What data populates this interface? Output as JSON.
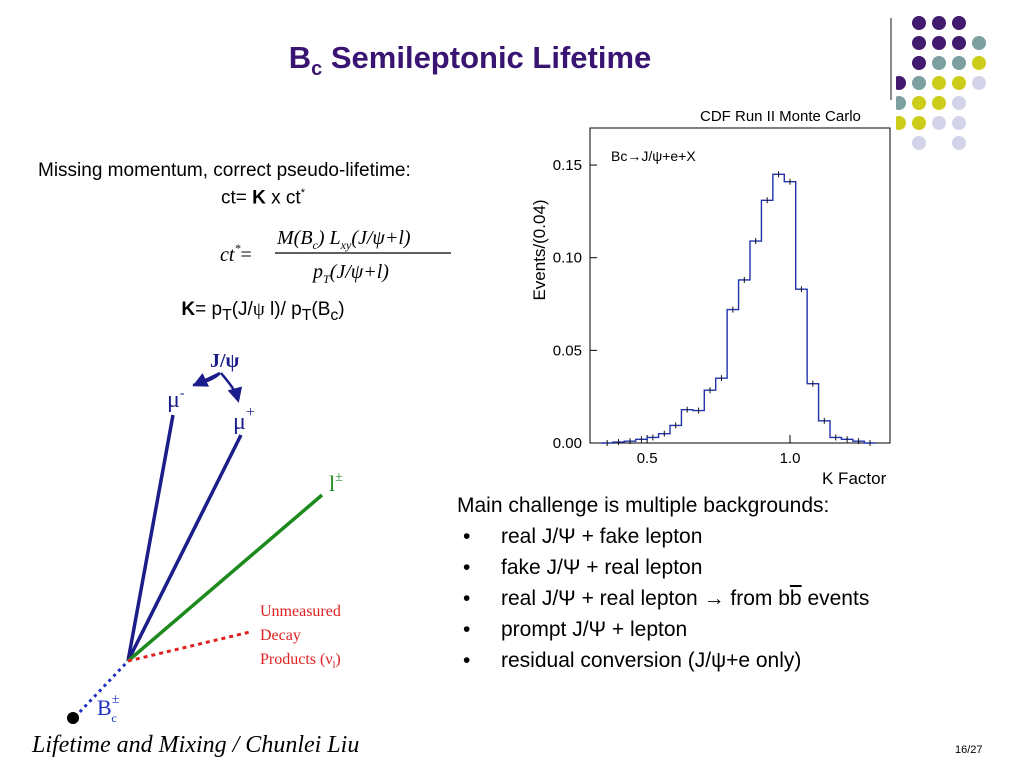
{
  "slide": {
    "title_main": "B",
    "title_sub": "c",
    "title_rest": " Semileptonic Lifetime",
    "page_number": "16/27",
    "footer_text": "Lifetime and Mixing / Chunlei Liu"
  },
  "left_text": {
    "missing_momentum": "Missing momentum, correct pseudo-lifetime:",
    "ct_prefix": "ct=",
    "ct_k": "K",
    "ct_x": " x  ct",
    "ct_star": "*",
    "k_label": "K",
    "k_eq": "= p",
    "k_sub_t1": "T",
    "k_mid": "(J/",
    "k_psi": "ψ",
    "k_mid2": " l)/ p",
    "k_sub_t2": "T",
    "k_end_a": "(B",
    "k_end_sub": "c",
    "k_end_b": ")"
  },
  "formula": {
    "lhs": "ct",
    "lhs_sup": "*",
    "eq": "=",
    "num_a": "M(B",
    "num_a_sub": "c",
    "num_b": ") L",
    "num_b_sub": "xy",
    "num_c": "(J/ψ+l)",
    "den_a": "p",
    "den_a_sub": "T",
    "den_b": "(J/ψ+l)"
  },
  "diagram": {
    "jpsi": "J/ψ",
    "mu_minus": "μ",
    "mu_minus_sup": "-",
    "mu_plus": "μ",
    "mu_plus_sup": "+",
    "lepton": "l",
    "lepton_sup": "±",
    "unmeasured_1": "Unmeasured",
    "unmeasured_2": "Decay",
    "unmeasured_3": "Products (ν",
    "unmeasured_3_sub": "l",
    "unmeasured_3_end": ")",
    "bc": "B",
    "bc_sup": "±",
    "bc_sub": "c"
  },
  "challenge": {
    "heading": "Main challenge is multiple backgrounds:",
    "bullet": "•",
    "items": [
      "real J/Ψ + fake lepton",
      "fake J/Ψ + real lepton",
      "real J/Ψ + real lepton → from b",
      "prompt J/Ψ + lepton",
      "residual conversion (J/ψ+e only)"
    ],
    "item3_overbar": "b",
    "item3_end": " events"
  },
  "chart_data": {
    "type": "bar",
    "title": "CDF Run II Monte Carlo",
    "annotation": "Bc→J/ψ+e+X",
    "xlabel": "K Factor",
    "ylabel": "Events/(0.04)",
    "xlim": [
      0.3,
      1.35
    ],
    "ylim": [
      0,
      0.17
    ],
    "xticks": [
      "0.5",
      "1.0"
    ],
    "yticks": [
      "0.00",
      "0.05",
      "0.10",
      "0.15"
    ],
    "bin_edges": [
      0.34,
      0.38,
      0.42,
      0.46,
      0.5,
      0.54,
      0.58,
      0.62,
      0.66,
      0.7,
      0.74,
      0.78,
      0.82,
      0.86,
      0.9,
      0.94,
      0.98,
      1.02,
      1.06,
      1.1,
      1.14,
      1.18,
      1.22,
      1.26,
      1.3
    ],
    "values": [
      0.0,
      0.0005,
      0.001,
      0.002,
      0.003,
      0.005,
      0.0095,
      0.018,
      0.0175,
      0.0285,
      0.035,
      0.072,
      0.088,
      0.109,
      0.131,
      0.145,
      0.141,
      0.083,
      0.032,
      0.012,
      0.003,
      0.002,
      0.001,
      0.0
    ],
    "color": "#2233aa",
    "grid": false
  },
  "colors": {
    "title": "#3a1472",
    "dot_purple": "#421a6e",
    "dot_teal": "#7c9fa0",
    "dot_yellow": "#cccc1a",
    "dot_lavender": "#d3d3ea",
    "muon_tracks": "#1b1d8a",
    "lepton_track": "#1d8a1d",
    "unmeasured": "#e02020",
    "bc_line": "#1c2fc0"
  }
}
